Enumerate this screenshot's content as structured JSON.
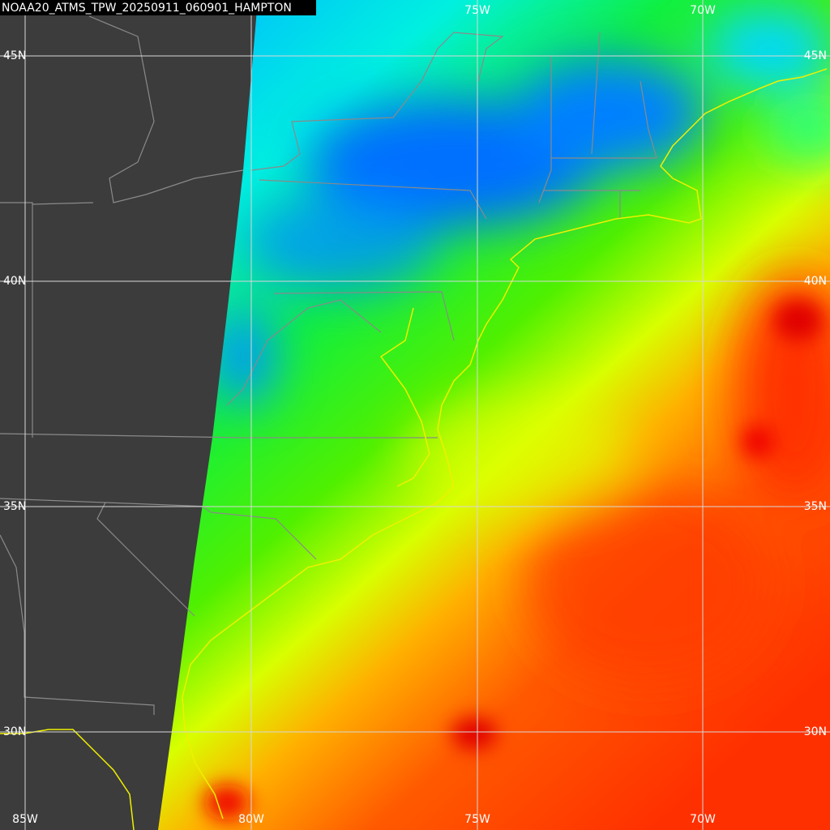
{
  "title": "NOAA20_ATMS_TPW_20250911_060901_HAMPTON",
  "grid": {
    "lat_labels": [
      "45N",
      "40N",
      "35N",
      "30N"
    ],
    "lon_labels_top": [
      "75W",
      "70W"
    ],
    "lon_labels_bottom": [
      "85W",
      "80W",
      "75W",
      "70W"
    ]
  }
}
